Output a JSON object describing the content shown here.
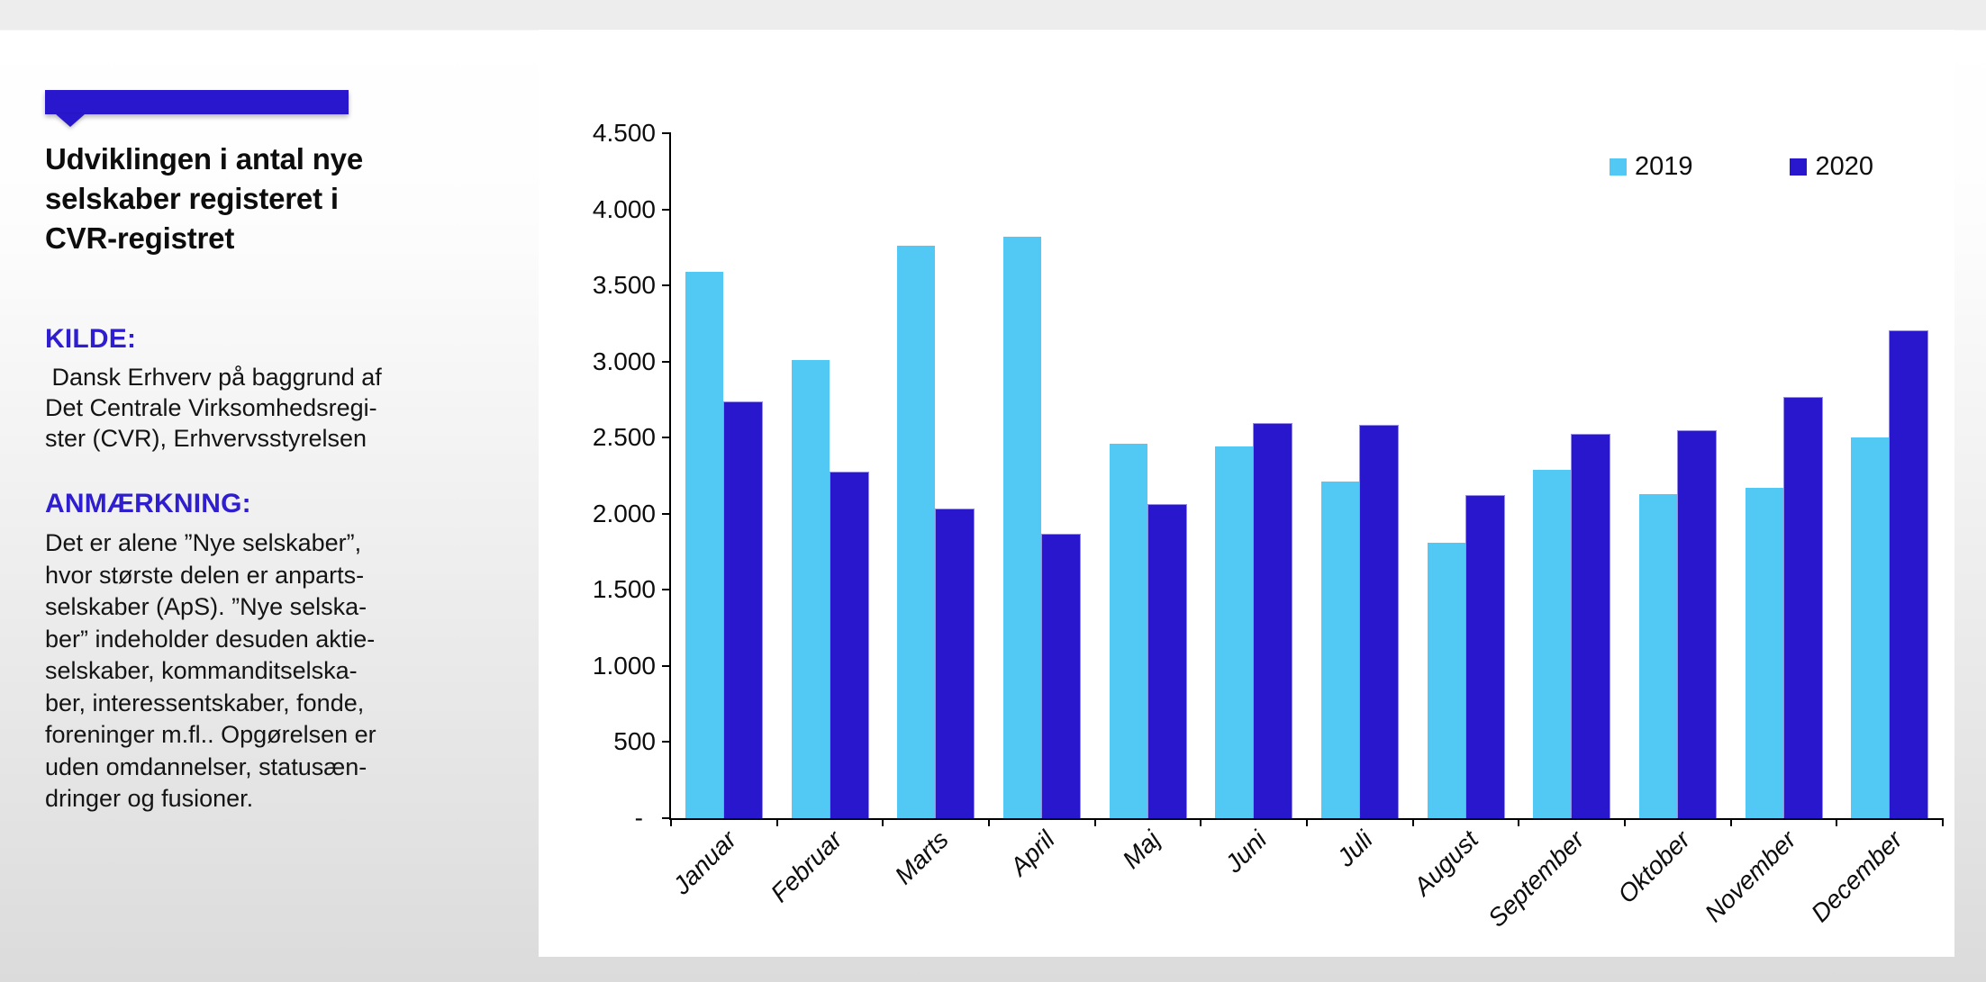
{
  "left_panel": {
    "title": "Udviklingen i antal nye\nselskaber registeret i\nCVR-registret",
    "kilde_heading": "KILDE:",
    "kilde_text": " Dansk Erhverv på baggrund af\nDet Centrale Virksomhedsregi-\nster (CVR), Erhvervsstyrelsen",
    "anmaerkning_heading": "ANMÆRKNING:",
    "anmaerkning_text": "Det er alene ”Nye selskaber”,\nhvor største delen er anparts-\nselskaber (ApS). ”Nye selska-\nber” indeholder desuden aktie-\nselskaber, kommanditselska-\nber, interessentskaber, fonde,\nforeninger m.fl.. Opgørelsen er\nuden omdannelser, statusæn-\ndringer og fusioner."
  },
  "colors": {
    "accent_blue": "#2817cc",
    "heading_blue": "#2e1ecf",
    "series_2019": "#52c9f5",
    "series_2020": "#2817cc"
  },
  "chart_data": {
    "type": "bar",
    "categories": [
      "Januar",
      "Februar",
      "Marts",
      "April",
      "Maj",
      "Juni",
      "Juli",
      "August",
      "September",
      "Oktober",
      "November",
      "December"
    ],
    "series": [
      {
        "name": "2019",
        "color": "#52c9f5",
        "values": [
          3590,
          3010,
          3760,
          3820,
          2460,
          2440,
          2210,
          1810,
          2290,
          2130,
          2170,
          2500
        ]
      },
      {
        "name": "2020",
        "color": "#2817cc",
        "values": [
          2730,
          2270,
          2030,
          1860,
          2060,
          2590,
          2580,
          2120,
          2520,
          2540,
          2760,
          3200
        ]
      }
    ],
    "title": "Udviklingen i antal nye selskaber registeret i CVR-registret",
    "xlabel": "",
    "ylabel": "",
    "ylim": [
      0,
      4500
    ],
    "ytick_step": 500,
    "ytick_labels": [
      "4.500",
      "4.000",
      "3.500",
      "3.000",
      "2.500",
      "2.000",
      "1.500",
      "1.000",
      "500",
      "-"
    ],
    "grid": false,
    "legend_position": "top-right",
    "bar_orientation": "vertical",
    "x_label_rotation_deg": 45,
    "x_label_style": "italic"
  }
}
